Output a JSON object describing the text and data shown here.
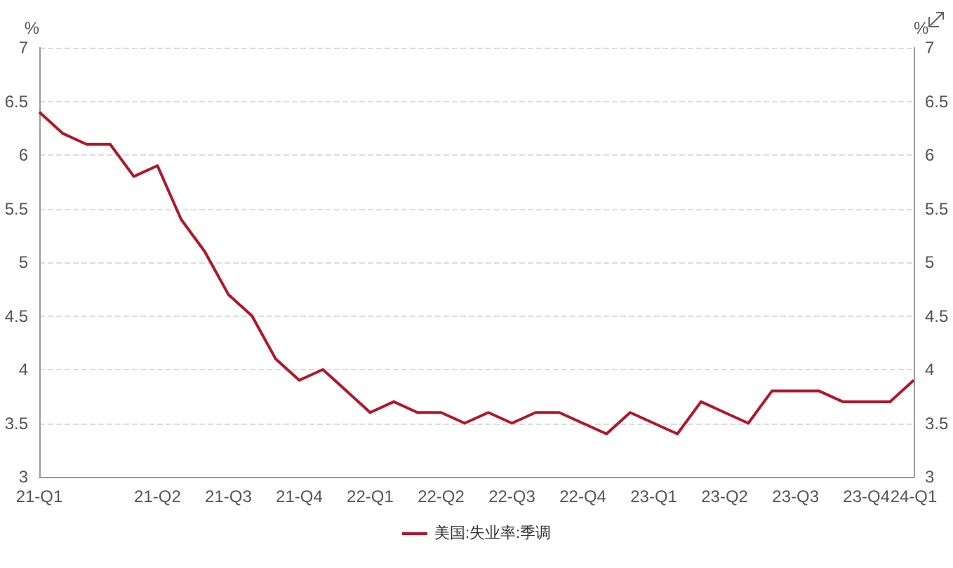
{
  "chart_data": {
    "type": "line",
    "ylabel": "%",
    "y2label": "%",
    "categories": [
      "21-Q1",
      null,
      null,
      null,
      null,
      "21-Q2",
      null,
      null,
      "21-Q3",
      null,
      null,
      "21-Q4",
      null,
      null,
      "22-Q1",
      null,
      null,
      "22-Q2",
      null,
      null,
      "22-Q3",
      null,
      null,
      "22-Q4",
      null,
      null,
      "23-Q1",
      null,
      null,
      "23-Q2",
      null,
      null,
      "23-Q3",
      null,
      null,
      "23-Q4",
      null,
      "24-Q1"
    ],
    "series": [
      {
        "name": "美国:失业率:季调",
        "color": "#b0182a",
        "values": [
          6.4,
          6.2,
          6.1,
          6.1,
          5.8,
          5.9,
          5.4,
          5.1,
          4.7,
          4.5,
          4.1,
          3.9,
          4.0,
          3.8,
          3.6,
          3.7,
          3.6,
          3.6,
          3.5,
          3.6,
          3.5,
          3.6,
          3.6,
          3.5,
          3.4,
          3.6,
          3.5,
          3.4,
          3.7,
          3.6,
          3.5,
          3.8,
          3.8,
          3.8,
          3.7,
          3.7,
          3.7,
          3.9
        ]
      }
    ],
    "ylim": [
      3,
      7
    ],
    "yticks": [
      3,
      3.5,
      4,
      4.5,
      5,
      5.5,
      6,
      6.5,
      7
    ],
    "y2lim": [
      3,
      7
    ],
    "y2ticks": [
      3,
      3.5,
      4,
      4.5,
      5,
      5.5,
      6,
      6.5,
      7
    ],
    "grid": "y",
    "legend": "bottom",
    "marker": "none",
    "line_style": "solid"
  }
}
